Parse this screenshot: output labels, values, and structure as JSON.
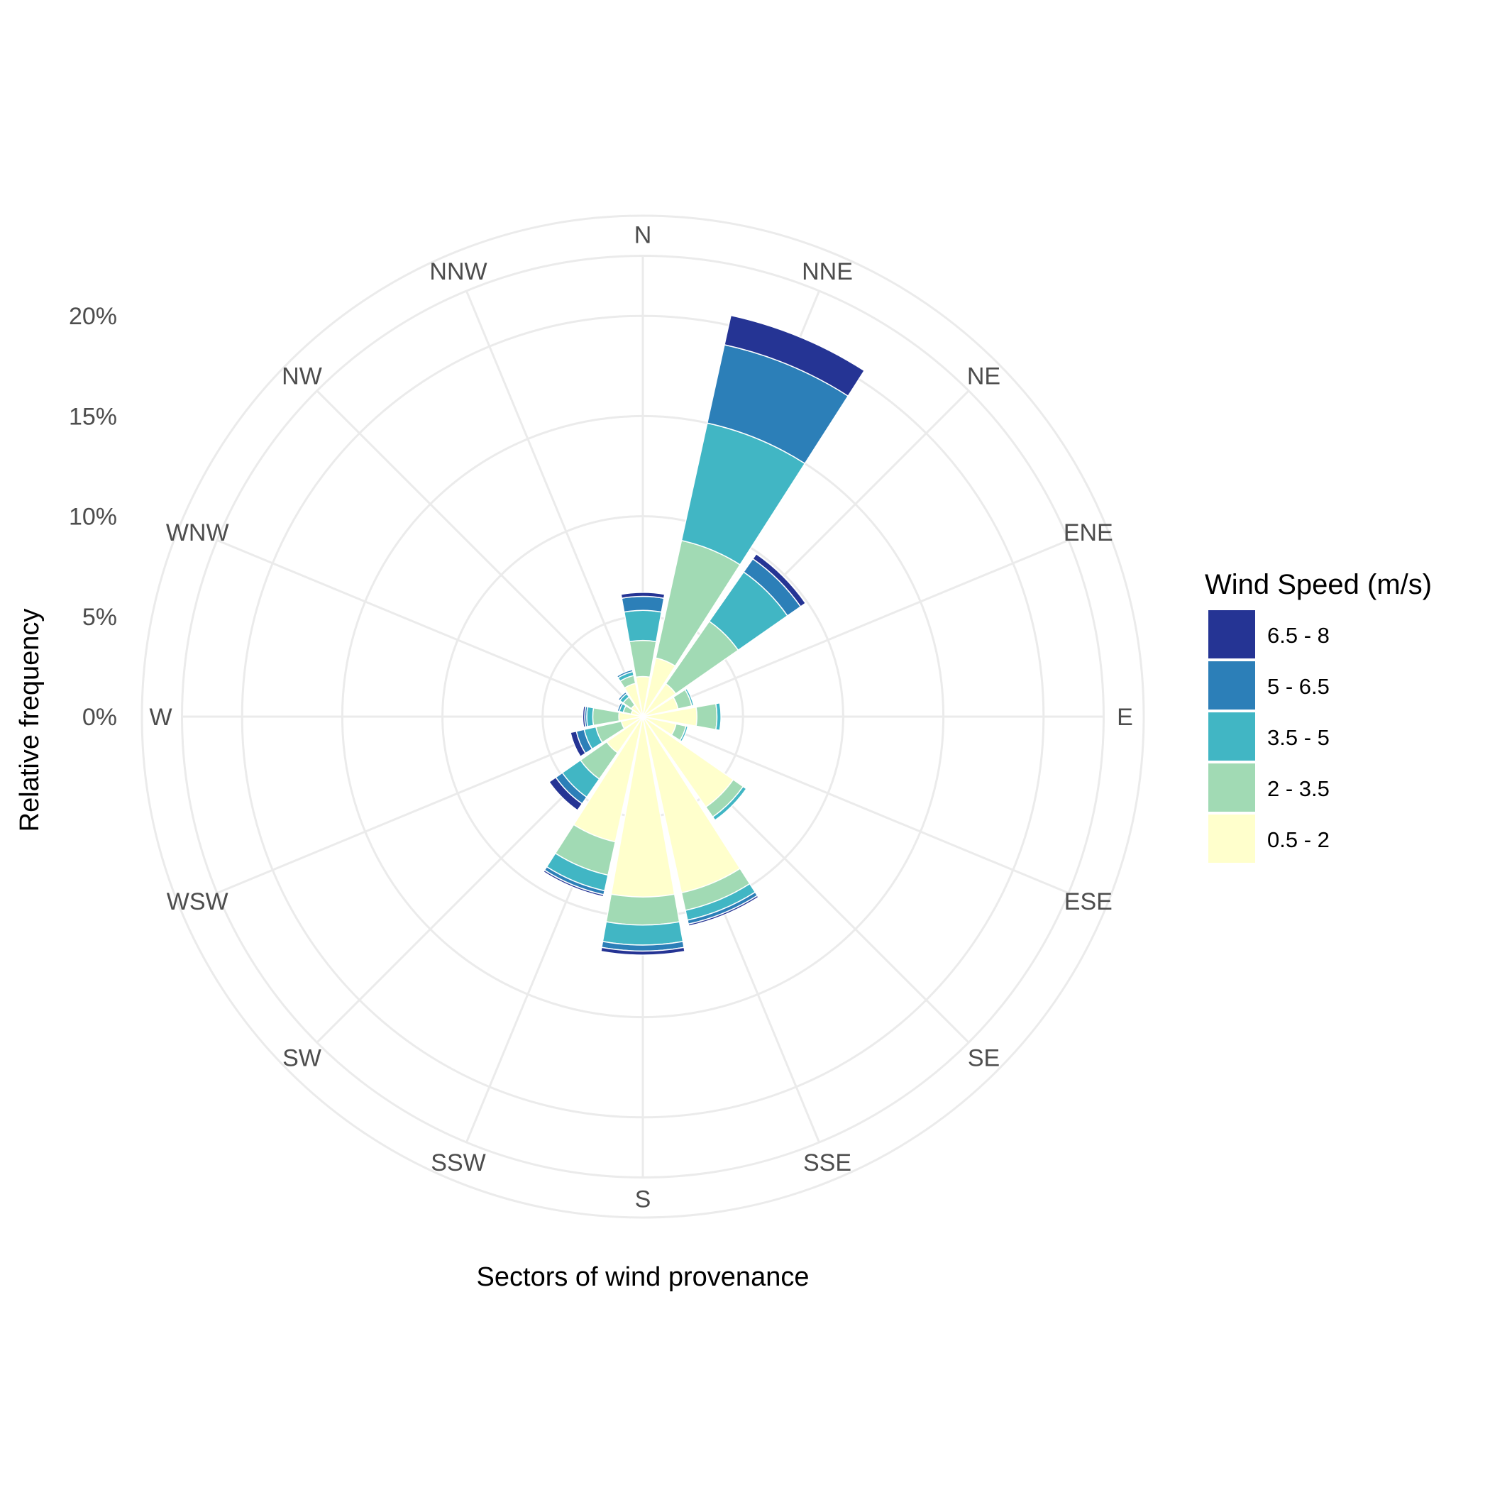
{
  "chart_data": {
    "type": "bar",
    "coordinate_system": "polar",
    "stacked": true,
    "direction": "clockwise",
    "start": "N",
    "xlabel": "Sectors of wind provenance",
    "ylabel": "Relative frequency",
    "categories": [
      "N",
      "NNE",
      "NE",
      "ENE",
      "E",
      "ESE",
      "SE",
      "SSE",
      "S",
      "SSW",
      "SW",
      "WSW",
      "W",
      "WNW",
      "NW",
      "NNW"
    ],
    "y_ticks": [
      0,
      5,
      10,
      15,
      20
    ],
    "y_tick_labels": [
      "0%",
      "5%",
      "10%",
      "15%",
      "20%"
    ],
    "ylim": [
      0,
      23
    ],
    "legend": {
      "title": "Wind Speed (m/s)",
      "position": "right"
    },
    "series": [
      {
        "name": "0.5 - 2",
        "color": "#FFFFCC",
        "values": [
          2.0,
          3.0,
          2.0,
          1.8,
          2.7,
          1.7,
          5.5,
          9.0,
          9.0,
          6.4,
          2.2,
          1.1,
          1.2,
          0.6,
          0.7,
          1.7
        ]
      },
      {
        "name": "2 - 3.5",
        "color": "#A1DAB4",
        "values": [
          1.8,
          6.0,
          3.8,
          0.7,
          1.0,
          0.5,
          0.6,
          0.9,
          1.4,
          1.7,
          1.6,
          1.3,
          1.3,
          0.4,
          0.5,
          0.4
        ]
      },
      {
        "name": "3.5 - 5",
        "color": "#41B6C4",
        "values": [
          1.5,
          6.0,
          3.0,
          0.1,
          0.2,
          0.1,
          0.2,
          0.5,
          1.0,
          0.8,
          1.1,
          0.6,
          0.3,
          0.2,
          0.2,
          0.2
        ]
      },
      {
        "name": "5 - 6.5",
        "color": "#2C7FB8",
        "values": [
          0.7,
          4.0,
          0.8,
          0.0,
          0.0,
          0.0,
          0.0,
          0.2,
          0.3,
          0.2,
          0.4,
          0.4,
          0.1,
          0.1,
          0.1,
          0.1
        ]
      },
      {
        "name": "6.5 - 8",
        "color": "#253494",
        "values": [
          0.2,
          1.5,
          0.3,
          0.0,
          0.0,
          0.0,
          0.0,
          0.1,
          0.2,
          0.1,
          0.4,
          0.3,
          0.1,
          0.0,
          0.0,
          0.0
        ]
      }
    ],
    "legend_order": [
      "6.5 - 8",
      "5 - 6.5",
      "3.5 - 5",
      "2 - 3.5",
      "0.5 - 2"
    ],
    "grid": true,
    "grid_color": "#EBEBEB"
  }
}
